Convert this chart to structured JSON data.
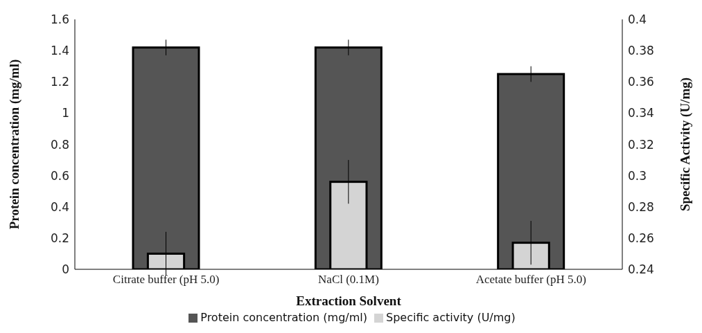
{
  "chart_data": {
    "type": "bar",
    "xlabel": "Extraction Solvent",
    "ylabel": "Protein concentration (mg/ml)",
    "y2label": "Specific Activity (U/mg)",
    "categories": [
      "Citrate buffer (pH 5.0)",
      "NaCl (0.1M)",
      "Acetate buffer (pH 5.0)"
    ],
    "series": [
      {
        "name": "Protein concentration (mg/ml)",
        "color": "#555555",
        "values": [
          1.42,
          1.42,
          1.25
        ],
        "errors": [
          0.05,
          0.05,
          0.05
        ]
      },
      {
        "name": "Specific activity (U/mg)",
        "color": "#d4d4d4",
        "axis": "y2",
        "values": [
          0.25,
          0.296,
          0.257
        ],
        "errors": [
          0.014,
          0.014,
          0.014
        ]
      }
    ],
    "ylim": [
      0,
      1.6
    ],
    "yticks": [
      0,
      0.2,
      0.4,
      0.6,
      0.8,
      1,
      1.2,
      1.4,
      1.6
    ],
    "y2lim": [
      0.24,
      0.4
    ],
    "y2ticks": [
      0.24,
      0.26,
      0.28,
      0.3,
      0.32,
      0.34,
      0.36,
      0.38,
      0.4
    ],
    "grid": false,
    "legend": "bottom"
  }
}
